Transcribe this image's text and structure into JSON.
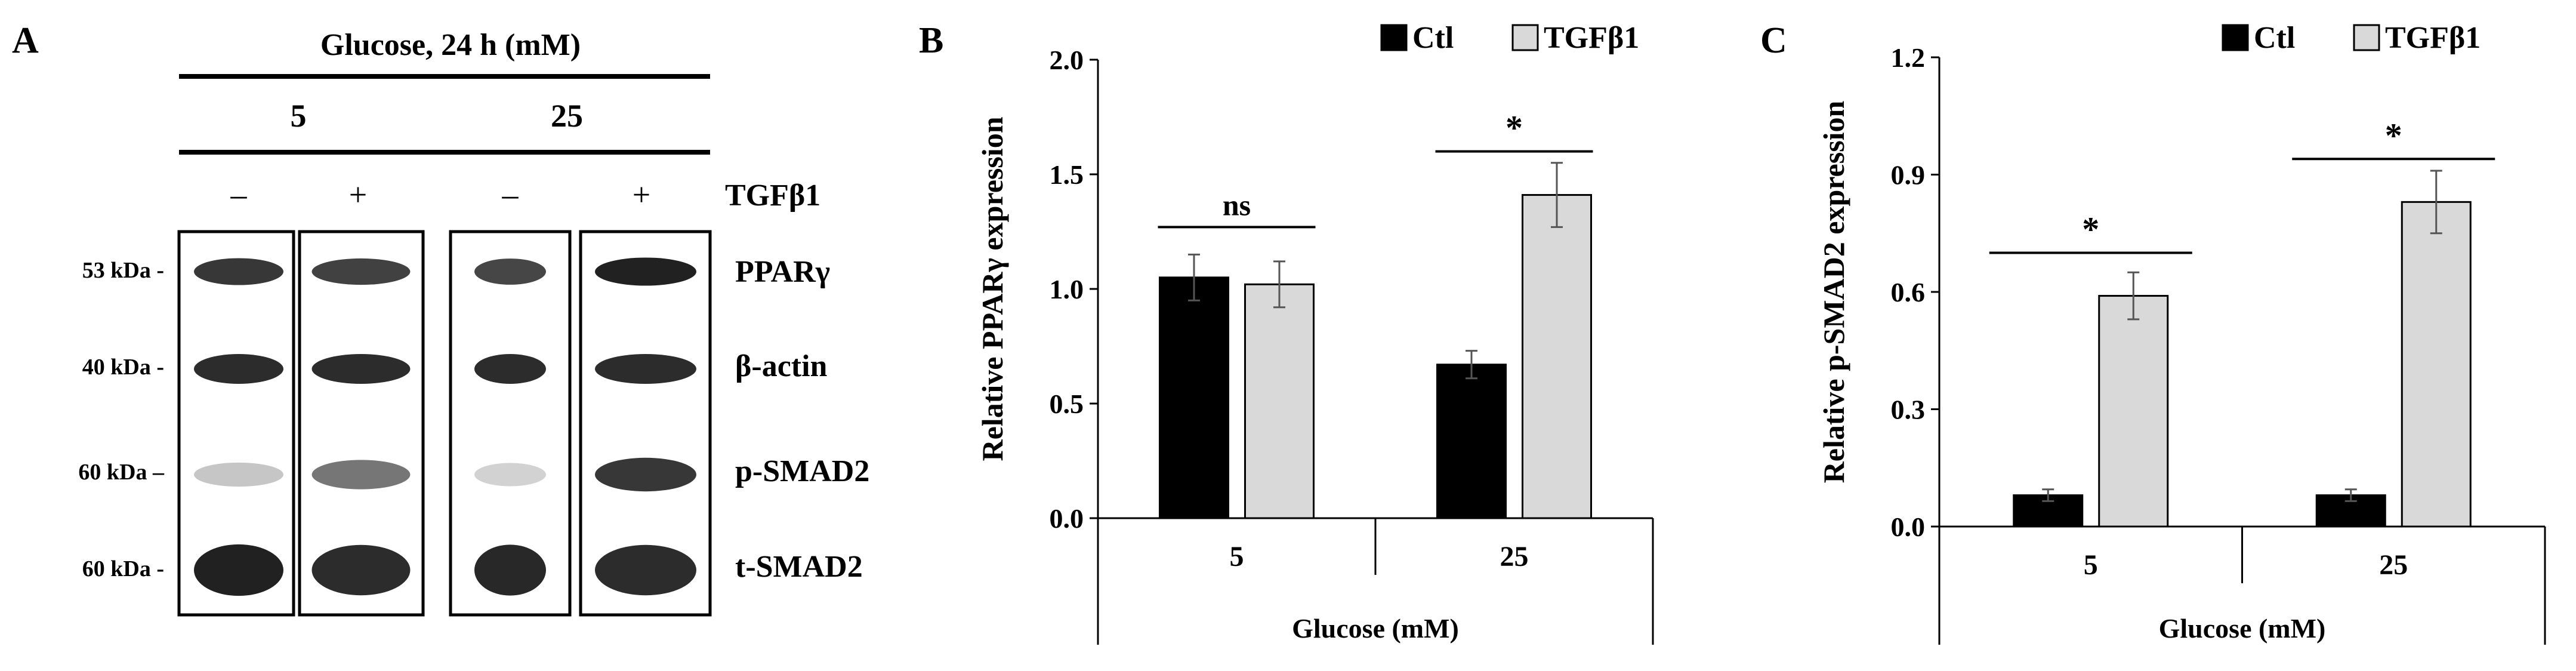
{
  "panel_a": {
    "letter": "A",
    "glucose_header": "Glucose, 24 h (mM)",
    "group_labels": [
      "5",
      "25"
    ],
    "treatment_signs": [
      "–",
      "+",
      "–",
      "+"
    ],
    "treatment_label": "TGFβ1",
    "markers": [
      {
        "size": "53 kDa -",
        "protein": "PPARγ"
      },
      {
        "size": "40 kDa -",
        "protein": "β-actin"
      },
      {
        "size": "60 kDa –",
        "protein": "p-SMAD2"
      },
      {
        "size": "60 kDa -",
        "protein": "t-SMAD2"
      }
    ],
    "band_intensity": [
      [
        0.85,
        0.8,
        0.78,
        0.95
      ],
      [
        0.9,
        0.9,
        0.9,
        0.9
      ],
      [
        0.18,
        0.55,
        0.12,
        0.85
      ],
      [
        0.95,
        0.9,
        0.92,
        0.9
      ]
    ]
  },
  "chart_data": [
    {
      "type": "bar",
      "letter": "B",
      "title": "",
      "ylabel": "Relative PPARγ expression",
      "xlabel": "Glucose (mM)",
      "categories": [
        "5",
        "25"
      ],
      "series": [
        {
          "name": "Ctl",
          "color": "#000000",
          "values": [
            1.05,
            0.67
          ],
          "errors": [
            0.1,
            0.06
          ]
        },
        {
          "name": "TGFβ1",
          "color": "#d9d9d9",
          "values": [
            1.02,
            1.41
          ],
          "errors": [
            0.1,
            0.14
          ]
        }
      ],
      "ylim": [
        0,
        2.0
      ],
      "yticks": [
        "0.0",
        "0.5",
        "1.0",
        "1.5",
        "2.0"
      ],
      "ytick_values": [
        0,
        0.5,
        1.0,
        1.5,
        2.0
      ],
      "legend": "top-right",
      "significance": [
        {
          "category": "5",
          "label": "ns",
          "value": 1.27
        },
        {
          "category": "25",
          "label": "*",
          "value": 1.6
        }
      ]
    },
    {
      "type": "bar",
      "letter": "C",
      "title": "",
      "ylabel": "Relative p-SMAD2 expression",
      "xlabel": "Glucose (mM)",
      "categories": [
        "5",
        "25"
      ],
      "series": [
        {
          "name": "Ctl",
          "color": "#000000",
          "values": [
            0.08,
            0.08
          ],
          "errors": [
            0.015,
            0.015
          ]
        },
        {
          "name": "TGFβ1",
          "color": "#d9d9d9",
          "values": [
            0.59,
            0.83
          ],
          "errors": [
            0.06,
            0.08
          ]
        }
      ],
      "ylim": [
        0,
        1.2
      ],
      "yticks": [
        "0.0",
        "0.3",
        "0.6",
        "0.9",
        "1.2"
      ],
      "ytick_values": [
        0,
        0.3,
        0.6,
        0.9,
        1.2
      ],
      "legend": "top-right",
      "significance": [
        {
          "category": "5",
          "label": "*",
          "value": 0.7
        },
        {
          "category": "25",
          "label": "*",
          "value": 0.94
        }
      ]
    }
  ]
}
